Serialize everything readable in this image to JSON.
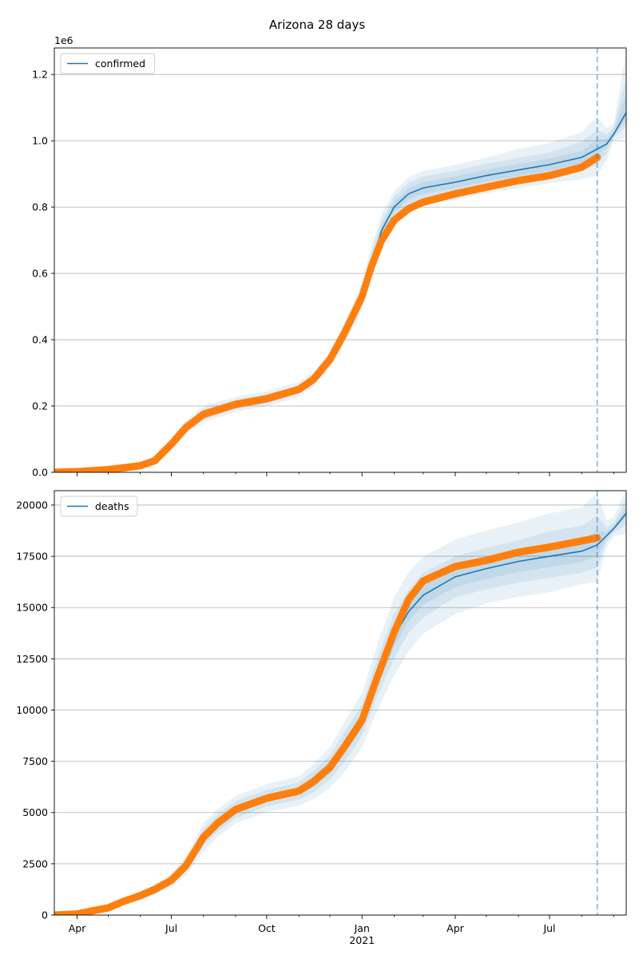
{
  "title": "Arizona 28 days",
  "colors": {
    "model": "#1f77b4",
    "observed": "#ff7f0e",
    "band": "#1f77b4",
    "grid": "#b0b0b0",
    "forecast_line": "#1f77b4"
  },
  "x_axis": {
    "range": [
      "2020-03-10",
      "2021-09-13"
    ],
    "major_ticks": [
      {
        "date": "2020-04-01",
        "label": "Apr"
      },
      {
        "date": "2020-07-01",
        "label": "Jul"
      },
      {
        "date": "2020-10-01",
        "label": "Oct"
      },
      {
        "date": "2021-01-01",
        "label": "Jan"
      },
      {
        "date": "2021-04-01",
        "label": "Apr"
      },
      {
        "date": "2021-07-01",
        "label": "Jul"
      }
    ],
    "minor_ticks": [
      "2020-05-01",
      "2020-06-01",
      "2020-08-01",
      "2020-09-01",
      "2020-11-01",
      "2020-12-01",
      "2021-02-01",
      "2021-03-01",
      "2021-05-01",
      "2021-06-01",
      "2021-08-01",
      "2021-09-01"
    ],
    "year_label": {
      "date": "2021-01-01",
      "text": "2021"
    },
    "forecast_start": "2021-08-16"
  },
  "chart_data": [
    {
      "type": "line",
      "name": "confirmed-panel",
      "legend": "confirmed",
      "legend_position": "top-left",
      "grid": "y",
      "ylim": [
        0,
        1280000
      ],
      "y_ticks": [
        0,
        200000,
        400000,
        600000,
        800000,
        1000000,
        1200000
      ],
      "y_tick_labels": [
        "0.0",
        "0.2",
        "0.4",
        "0.6",
        "0.8",
        "1.0",
        "1.2"
      ],
      "offset_label": "1e6",
      "observed": {
        "x": [
          "2020-03-10",
          "2020-04-01",
          "2020-05-01",
          "2020-06-01",
          "2020-06-15",
          "2020-07-01",
          "2020-07-15",
          "2020-08-01",
          "2020-09-01",
          "2020-10-01",
          "2020-11-01",
          "2020-11-15",
          "2020-12-01",
          "2020-12-15",
          "2021-01-01",
          "2021-01-10",
          "2021-01-20",
          "2021-02-01",
          "2021-02-15",
          "2021-03-01",
          "2021-04-01",
          "2021-05-01",
          "2021-06-01",
          "2021-07-01",
          "2021-08-01",
          "2021-08-16"
        ],
        "y": [
          0,
          2000,
          8000,
          20000,
          35000,
          85000,
          135000,
          175000,
          205000,
          222000,
          250000,
          280000,
          340000,
          420000,
          530000,
          620000,
          700000,
          760000,
          795000,
          815000,
          840000,
          860000,
          880000,
          895000,
          920000,
          950000
        ]
      },
      "model": {
        "x": [
          "2020-03-10",
          "2020-04-01",
          "2020-05-01",
          "2020-06-01",
          "2020-06-15",
          "2020-07-01",
          "2020-07-15",
          "2020-08-01",
          "2020-09-01",
          "2020-10-01",
          "2020-11-01",
          "2020-11-15",
          "2020-12-01",
          "2020-12-15",
          "2021-01-01",
          "2021-01-10",
          "2021-01-20",
          "2021-02-01",
          "2021-02-15",
          "2021-03-01",
          "2021-04-01",
          "2021-05-01",
          "2021-06-01",
          "2021-07-01",
          "2021-08-01",
          "2021-08-16",
          "2021-08-25",
          "2021-09-01",
          "2021-09-13"
        ],
        "y": [
          0,
          2000,
          8000,
          20000,
          35000,
          85000,
          135000,
          175000,
          205000,
          222000,
          250000,
          280000,
          340000,
          420000,
          530000,
          630000,
          730000,
          800000,
          840000,
          858000,
          875000,
          895000,
          912000,
          928000,
          950000,
          975000,
          990000,
          1020000,
          1085000
        ]
      },
      "bands": [
        {
          "lower_pct": [
            0.75,
            0.75,
            0.8,
            0.85,
            0.85,
            0.85,
            0.85,
            0.86,
            0.89,
            0.9,
            0.91,
            0.92,
            0.93,
            0.93,
            0.92,
            0.92,
            0.93,
            0.94,
            0.94,
            0.94,
            0.94,
            0.94,
            0.94,
            0.94,
            0.93,
            0.92,
            0.95,
            0.98,
            0.93
          ],
          "upper_pct": [
            1.25,
            1.25,
            1.2,
            1.15,
            1.15,
            1.15,
            1.15,
            1.14,
            1.11,
            1.1,
            1.09,
            1.08,
            1.07,
            1.07,
            1.08,
            1.08,
            1.07,
            1.06,
            1.06,
            1.06,
            1.06,
            1.06,
            1.07,
            1.07,
            1.08,
            1.1,
            1.05,
            1.03,
            1.17
          ]
        },
        {
          "lower_pct": [
            0.85,
            0.85,
            0.88,
            0.9,
            0.9,
            0.9,
            0.9,
            0.91,
            0.93,
            0.94,
            0.95,
            0.95,
            0.95,
            0.95,
            0.95,
            0.95,
            0.96,
            0.96,
            0.96,
            0.96,
            0.96,
            0.96,
            0.96,
            0.96,
            0.96,
            0.95,
            0.97,
            0.99,
            0.96
          ],
          "upper_pct": [
            1.15,
            1.15,
            1.12,
            1.1,
            1.1,
            1.1,
            1.1,
            1.09,
            1.07,
            1.06,
            1.05,
            1.05,
            1.05,
            1.05,
            1.05,
            1.05,
            1.04,
            1.04,
            1.04,
            1.04,
            1.04,
            1.04,
            1.04,
            1.04,
            1.05,
            1.06,
            1.03,
            1.02,
            1.1
          ]
        },
        {
          "lower_pct": [
            0.92,
            0.92,
            0.94,
            0.95,
            0.95,
            0.95,
            0.95,
            0.96,
            0.97,
            0.97,
            0.98,
            0.98,
            0.98,
            0.98,
            0.98,
            0.98,
            0.98,
            0.98,
            0.98,
            0.98,
            0.98,
            0.98,
            0.98,
            0.98,
            0.98,
            0.98,
            0.99,
            0.995,
            0.98
          ],
          "upper_pct": [
            1.08,
            1.08,
            1.06,
            1.05,
            1.05,
            1.05,
            1.05,
            1.04,
            1.03,
            1.03,
            1.02,
            1.02,
            1.02,
            1.02,
            1.02,
            1.02,
            1.02,
            1.02,
            1.02,
            1.02,
            1.02,
            1.02,
            1.02,
            1.02,
            1.02,
            1.03,
            1.015,
            1.01,
            1.05
          ]
        }
      ]
    },
    {
      "type": "line",
      "name": "deaths-panel",
      "legend": "deaths",
      "legend_position": "top-left",
      "grid": "y",
      "ylim": [
        0,
        20700
      ],
      "y_ticks": [
        0,
        2500,
        5000,
        7500,
        10000,
        12500,
        15000,
        17500,
        20000
      ],
      "y_tick_labels": [
        "0",
        "2500",
        "5000",
        "7500",
        "10000",
        "12500",
        "15000",
        "17500",
        "20000"
      ],
      "observed": {
        "x": [
          "2020-03-10",
          "2020-04-01",
          "2020-04-15",
          "2020-05-01",
          "2020-05-15",
          "2020-06-01",
          "2020-06-15",
          "2020-07-01",
          "2020-07-15",
          "2020-08-01",
          "2020-08-15",
          "2020-09-01",
          "2020-10-01",
          "2020-11-01",
          "2020-11-15",
          "2020-12-01",
          "2020-12-15",
          "2021-01-01",
          "2021-01-15",
          "2021-02-01",
          "2021-02-15",
          "2021-03-01",
          "2021-04-01",
          "2021-05-01",
          "2021-06-01",
          "2021-07-01",
          "2021-08-01",
          "2021-08-16"
        ],
        "y": [
          0,
          50,
          200,
          350,
          650,
          950,
          1250,
          1700,
          2400,
          3800,
          4500,
          5150,
          5700,
          6050,
          6500,
          7200,
          8200,
          9500,
          11500,
          13800,
          15400,
          16300,
          17000,
          17300,
          17700,
          17950,
          18250,
          18400
        ]
      },
      "model": {
        "x": [
          "2020-03-10",
          "2020-04-01",
          "2020-04-15",
          "2020-05-01",
          "2020-05-15",
          "2020-06-01",
          "2020-06-15",
          "2020-07-01",
          "2020-07-15",
          "2020-08-01",
          "2020-08-15",
          "2020-09-01",
          "2020-10-01",
          "2020-11-01",
          "2020-11-15",
          "2020-12-01",
          "2020-12-15",
          "2021-01-01",
          "2021-01-15",
          "2021-02-01",
          "2021-02-15",
          "2021-03-01",
          "2021-04-01",
          "2021-05-01",
          "2021-06-01",
          "2021-07-01",
          "2021-08-01",
          "2021-08-16",
          "2021-08-25",
          "2021-09-01",
          "2021-09-13"
        ],
        "y": [
          0,
          50,
          200,
          350,
          650,
          950,
          1250,
          1700,
          2400,
          3800,
          4500,
          5150,
          5700,
          6050,
          6500,
          7200,
          8200,
          9500,
          11500,
          13600,
          14800,
          15600,
          16500,
          16900,
          17250,
          17500,
          17750,
          18050,
          18500,
          18850,
          19600
        ]
      },
      "bands": [
        {
          "lower_pct": [
            0.75,
            0.75,
            0.75,
            0.75,
            0.77,
            0.78,
            0.8,
            0.8,
            0.8,
            0.82,
            0.85,
            0.87,
            0.88,
            0.88,
            0.87,
            0.86,
            0.85,
            0.86,
            0.86,
            0.86,
            0.87,
            0.88,
            0.89,
            0.9,
            0.9,
            0.9,
            0.91,
            0.9,
            0.97,
            0.98,
            0.95
          ],
          "upper_pct": [
            1.25,
            1.25,
            1.25,
            1.25,
            1.23,
            1.22,
            1.2,
            1.2,
            1.2,
            1.18,
            1.15,
            1.13,
            1.12,
            1.12,
            1.13,
            1.14,
            1.15,
            1.14,
            1.14,
            1.14,
            1.13,
            1.12,
            1.11,
            1.11,
            1.11,
            1.12,
            1.12,
            1.14,
            1.04,
            1.03,
            1.06
          ]
        },
        {
          "lower_pct": [
            0.85,
            0.85,
            0.85,
            0.85,
            0.86,
            0.87,
            0.88,
            0.88,
            0.88,
            0.89,
            0.91,
            0.92,
            0.93,
            0.93,
            0.92,
            0.92,
            0.91,
            0.92,
            0.92,
            0.92,
            0.93,
            0.93,
            0.94,
            0.94,
            0.94,
            0.94,
            0.94,
            0.94,
            0.985,
            0.99,
            0.97
          ],
          "upper_pct": [
            1.15,
            1.15,
            1.15,
            1.15,
            1.14,
            1.13,
            1.12,
            1.12,
            1.12,
            1.11,
            1.09,
            1.08,
            1.07,
            1.07,
            1.08,
            1.08,
            1.09,
            1.08,
            1.08,
            1.08,
            1.07,
            1.07,
            1.06,
            1.06,
            1.06,
            1.07,
            1.07,
            1.08,
            1.02,
            1.015,
            1.035
          ]
        },
        {
          "lower_pct": [
            0.93,
            0.93,
            0.93,
            0.93,
            0.93,
            0.94,
            0.94,
            0.94,
            0.94,
            0.95,
            0.96,
            0.96,
            0.97,
            0.97,
            0.96,
            0.96,
            0.96,
            0.96,
            0.96,
            0.96,
            0.97,
            0.97,
            0.97,
            0.97,
            0.97,
            0.97,
            0.97,
            0.97,
            0.995,
            0.997,
            0.99
          ],
          "upper_pct": [
            1.07,
            1.07,
            1.07,
            1.07,
            1.07,
            1.06,
            1.06,
            1.06,
            1.06,
            1.05,
            1.04,
            1.04,
            1.03,
            1.03,
            1.04,
            1.04,
            1.04,
            1.04,
            1.04,
            1.04,
            1.03,
            1.03,
            1.03,
            1.03,
            1.03,
            1.03,
            1.03,
            1.04,
            1.01,
            1.007,
            1.015
          ]
        }
      ]
    }
  ]
}
